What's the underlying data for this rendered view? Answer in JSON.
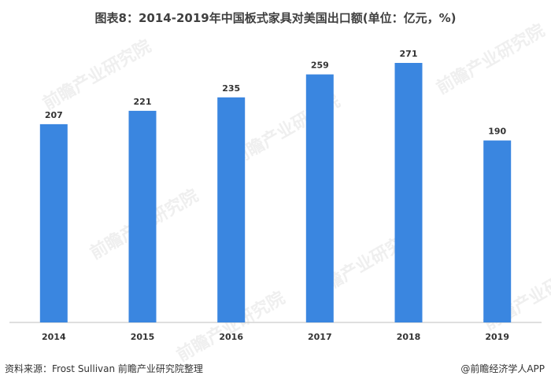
{
  "title": "图表8：2014-2019年中国板式家具对美国出口额(单位：亿元，%)",
  "source_note": "资料来源：Frost Sullivan 前瞻产业研究院整理",
  "brand_note": "@前瞻经济学人APP",
  "watermark_text": "前瞻产业研究院",
  "colors": {
    "bar": "#3a86e0",
    "axis": "#bfbfbf"
  },
  "chart_data": {
    "type": "bar",
    "title": "图表8：2014-2019年中国板式家具对美国出口额(单位：亿元，%)",
    "categories": [
      "2014",
      "2015",
      "2016",
      "2017",
      "2018",
      "2019"
    ],
    "values": [
      207,
      221,
      235,
      259,
      271,
      190
    ],
    "data_labels": [
      "207",
      "221",
      "235",
      "259",
      "271",
      "190"
    ],
    "xlabel": "",
    "ylabel": "",
    "ylim": [
      0,
      283
    ],
    "grid": false,
    "legend": "none"
  }
}
